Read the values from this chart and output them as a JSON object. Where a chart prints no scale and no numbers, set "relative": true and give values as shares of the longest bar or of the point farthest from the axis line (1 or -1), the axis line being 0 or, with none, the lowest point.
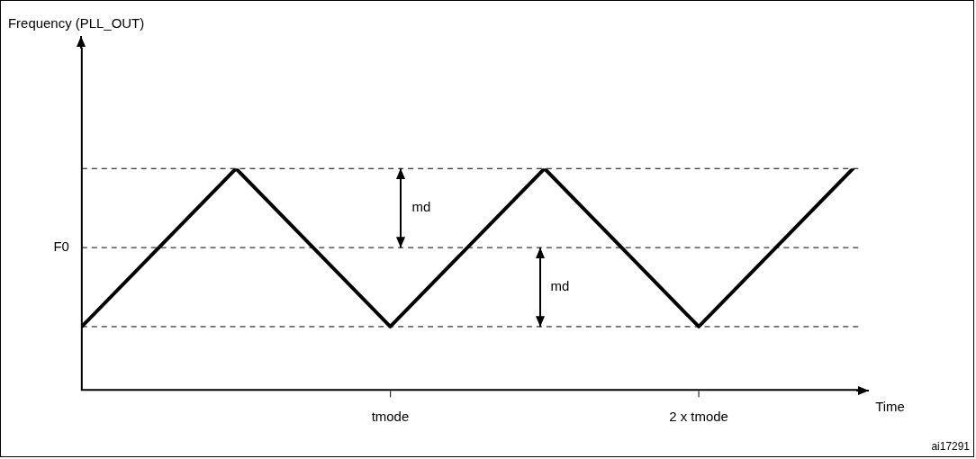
{
  "chart_data": {
    "type": "line",
    "relative": true,
    "xlabel": "Time",
    "categories": [
      null,
      null,
      "tmode",
      null,
      "2 x tmode",
      null
    ],
    "values": [
      0.286,
      1,
      0.286,
      1,
      0.286,
      1
    ],
    "color": "#000000",
    "grid": false,
    "legend": false,
    "marker": "none",
    "line_style": "solid",
    "ref_lines": [
      {
        "axis": "y",
        "value": 1,
        "label": null,
        "color": "#000000",
        "line_style": "dashed"
      },
      {
        "axis": "y",
        "value": 0.643,
        "label": "F0",
        "color": "#000000",
        "line_style": "dashed"
      },
      {
        "axis": "y",
        "value": 0.286,
        "label": null,
        "color": "#000000",
        "line_style": "dashed"
      }
    ],
    "annotations": [
      "Frequency (PLL_OUT)",
      "md",
      "md",
      "ai17291"
    ]
  }
}
